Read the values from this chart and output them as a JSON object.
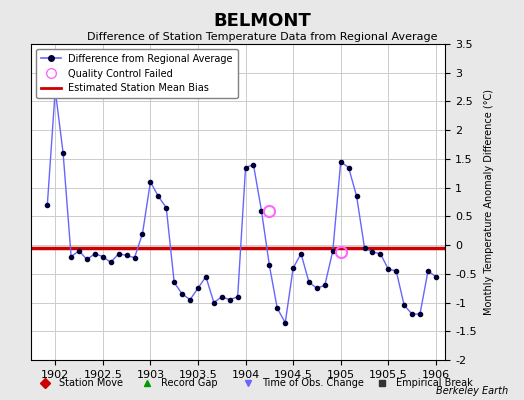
{
  "title": "BELMONT",
  "subtitle": "Difference of Station Temperature Data from Regional Average",
  "ylabel_right": "Monthly Temperature Anomaly Difference (°C)",
  "watermark": "Berkeley Earth",
  "bias": -0.05,
  "ylim": [
    -2.0,
    3.5
  ],
  "xlim": [
    1901.75,
    1906.1
  ],
  "xticks": [
    1902,
    1902.5,
    1903,
    1903.5,
    1904,
    1904.5,
    1905,
    1905.5,
    1906
  ],
  "yticks_right": [
    -2,
    -1.5,
    -1,
    -0.5,
    0,
    0.5,
    1,
    1.5,
    2,
    2.5,
    3,
    3.5
  ],
  "line_color": "#6666ff",
  "line_marker_color": "#000033",
  "bias_color": "#cc0000",
  "qc_color": "#ff66ff",
  "background_color": "#e8e8e8",
  "plot_bg_color": "#ffffff",
  "grid_color": "#cccccc",
  "times": [
    1901.917,
    1902.0,
    1902.083,
    1902.167,
    1902.25,
    1902.333,
    1902.417,
    1902.5,
    1902.583,
    1902.667,
    1902.75,
    1902.833,
    1902.917,
    1903.0,
    1903.083,
    1903.167,
    1903.25,
    1903.333,
    1903.417,
    1903.5,
    1903.583,
    1903.667,
    1903.75,
    1903.833,
    1903.917,
    1904.0,
    1904.083,
    1904.167,
    1904.25,
    1904.333,
    1904.417,
    1904.5,
    1904.583,
    1904.667,
    1904.75,
    1904.833,
    1904.917,
    1905.0,
    1905.083,
    1905.167,
    1905.25,
    1905.333,
    1905.417,
    1905.5,
    1905.583,
    1905.667,
    1905.75,
    1905.833,
    1905.917,
    1906.0
  ],
  "values": [
    0.7,
    2.7,
    1.6,
    -0.2,
    -0.1,
    -0.25,
    -0.15,
    -0.2,
    -0.3,
    -0.15,
    -0.18,
    -0.22,
    0.2,
    1.1,
    0.85,
    0.65,
    -0.65,
    -0.85,
    -0.95,
    -0.75,
    -0.55,
    -1.0,
    -0.9,
    -0.95,
    -0.9,
    1.35,
    1.4,
    0.6,
    -0.35,
    -1.1,
    -1.35,
    -0.4,
    -0.15,
    -0.65,
    -0.75,
    -0.7,
    -0.1,
    1.45,
    1.35,
    0.85,
    -0.05,
    -0.12,
    -0.15,
    -0.42,
    -0.45,
    -1.05,
    -1.2,
    -1.2,
    -0.45,
    -0.55
  ],
  "qc_failed_times": [
    1904.25,
    1905.0
  ],
  "qc_failed_values": [
    0.6,
    -0.12
  ],
  "bottom_legend": [
    {
      "marker": "D",
      "color": "#cc0000",
      "label": "Station Move"
    },
    {
      "marker": "^",
      "color": "#009900",
      "label": "Record Gap"
    },
    {
      "marker": "v",
      "color": "#6666ff",
      "label": "Time of Obs. Change"
    },
    {
      "marker": "s",
      "color": "#333333",
      "label": "Empirical Break"
    }
  ]
}
